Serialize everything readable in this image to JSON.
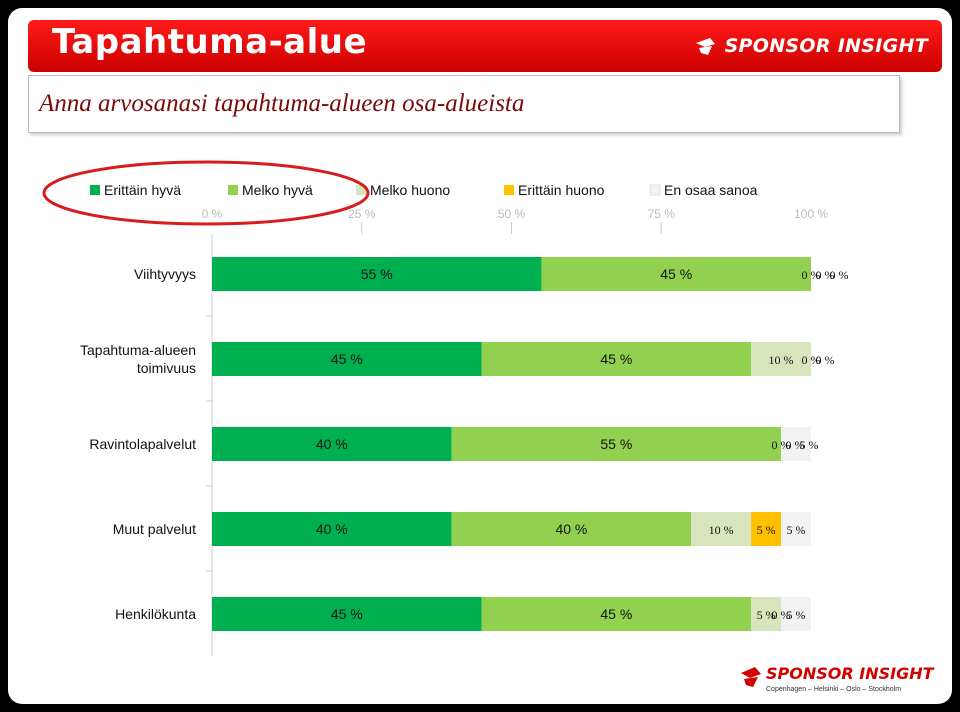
{
  "header": {
    "title": "Tapahtuma-alue",
    "logo_text": "SPONSOR INSIGHT"
  },
  "subtitle": "Anna arvosanasi tapahtuma-alueen osa-alueista",
  "footer": {
    "logo_text": "SPONSOR INSIGHT",
    "cities": "Copenhagen – Helsinki – Oslo – Stockholm"
  },
  "colors": {
    "header_red": "#e00000",
    "highlight_red": "#d81b1b"
  },
  "chart_data": {
    "type": "bar",
    "orientation": "horizontal",
    "stacked": "percent",
    "xlim": [
      0,
      100
    ],
    "xticks": [
      "0 %",
      "25 %",
      "50 %",
      "75 %",
      "100 %"
    ],
    "grid": false,
    "legend_position": "top",
    "categories": [
      "Viihtyvyys",
      "Tapahtuma-alueen\ntoimivuus",
      "Ravintolapalvelut",
      "Muut palvelut",
      "Henkilökunta"
    ],
    "series": [
      {
        "name": "Erittäin hyvä",
        "color": "#00b050",
        "values": [
          55,
          45,
          40,
          40,
          45
        ]
      },
      {
        "name": "Melko hyvä",
        "color": "#92d050",
        "values": [
          45,
          45,
          55,
          40,
          45
        ]
      },
      {
        "name": "Melko huono",
        "color": "#d8e4bc",
        "values": [
          0,
          10,
          0,
          10,
          5
        ]
      },
      {
        "name": "Erittäin huono",
        "color": "#ffc000",
        "values": [
          0,
          0,
          0,
          5,
          0
        ]
      },
      {
        "name": "En osaa sanoa",
        "color": "#f2f2f2",
        "values": [
          0,
          0,
          5,
          5,
          5
        ]
      }
    ]
  }
}
